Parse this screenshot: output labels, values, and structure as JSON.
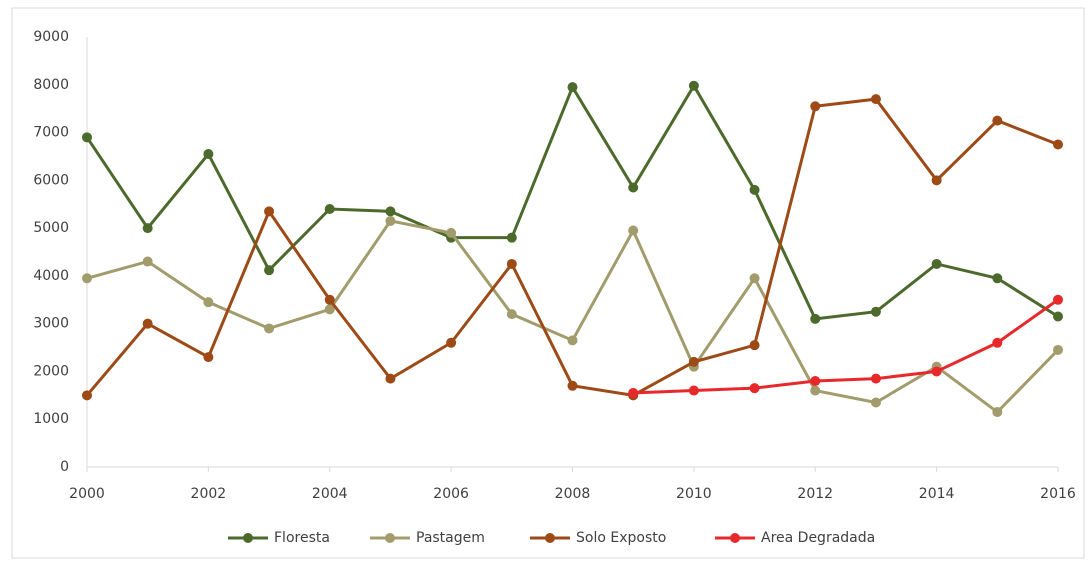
{
  "chart_data": {
    "type": "line",
    "x": [
      2000,
      2001,
      2002,
      2003,
      2004,
      2005,
      2006,
      2007,
      2008,
      2009,
      2010,
      2011,
      2012,
      2013,
      2014,
      2015,
      2016
    ],
    "series": [
      {
        "name": "Floresta",
        "color": "#4b6a2b",
        "values": [
          6900,
          5000,
          6550,
          4120,
          5400,
          5350,
          4800,
          4800,
          7950,
          5850,
          7980,
          5800,
          3100,
          3250,
          4250,
          3950,
          3150
        ]
      },
      {
        "name": "Pastagem",
        "color": "#a29c6c",
        "values": [
          3950,
          4300,
          3450,
          2900,
          3300,
          5150,
          4900,
          3200,
          2650,
          4950,
          2100,
          3950,
          1600,
          1350,
          2100,
          1150,
          2450
        ]
      },
      {
        "name": "Solo Exposto",
        "color": "#9d4a16",
        "values": [
          1500,
          3000,
          2300,
          5350,
          3500,
          1850,
          2600,
          4250,
          1700,
          1500,
          2200,
          2550,
          7550,
          7700,
          6000,
          7250,
          6750
        ]
      },
      {
        "name": "Area Degradada",
        "color": "#e8292b",
        "values": [
          null,
          null,
          null,
          null,
          null,
          null,
          null,
          null,
          null,
          1550,
          1600,
          1650,
          1800,
          1850,
          2000,
          2600,
          3500
        ]
      }
    ],
    "xlim": [
      2000,
      2016
    ],
    "xticks": [
      2000,
      2002,
      2004,
      2006,
      2008,
      2010,
      2012,
      2014,
      2016
    ],
    "ylim": [
      0,
      9000
    ],
    "yticks": [
      0,
      1000,
      2000,
      3000,
      4000,
      5000,
      6000,
      7000,
      8000,
      9000
    ],
    "grid": false,
    "legend": "bottom"
  }
}
